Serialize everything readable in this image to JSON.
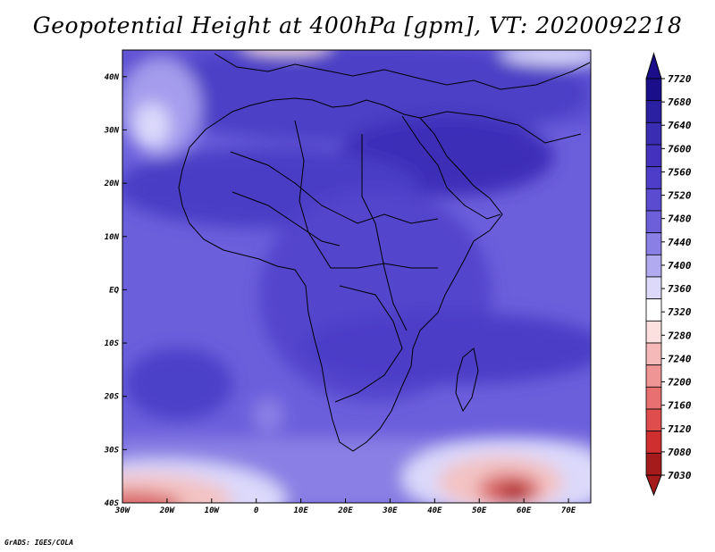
{
  "title": "Geopotential Height at 400hPa [gpm], VT: 2020092218",
  "credit": "GrADS: IGES/COLA",
  "map": {
    "lat_labels": [
      "40N",
      "30N",
      "20N",
      "10N",
      "EQ",
      "10S",
      "20S",
      "30S",
      "40S"
    ],
    "lon_labels": [
      "30W",
      "20W",
      "10W",
      "0",
      "10E",
      "20E",
      "30E",
      "40E",
      "50E",
      "60E",
      "70E"
    ],
    "lat_values": [
      40,
      30,
      20,
      10,
      0,
      -10,
      -20,
      -30,
      -40
    ],
    "lon_values": [
      -30,
      -20,
      -10,
      0,
      10,
      20,
      30,
      40,
      50,
      60,
      70
    ],
    "lat_range": [
      -40,
      45
    ],
    "lon_range": [
      -30,
      75
    ]
  },
  "colorbar": {
    "labels": [
      "7720",
      "7680",
      "7640",
      "7600",
      "7560",
      "7520",
      "7480",
      "7440",
      "7400",
      "7360",
      "7320",
      "7280",
      "7240",
      "7200",
      "7160",
      "7120",
      "7080",
      "7030"
    ],
    "colors": [
      "#1a0e8a",
      "#2b1fa2",
      "#3a2db3",
      "#4432bf",
      "#4d3dc8",
      "#5a4bd1",
      "#6d5fd9",
      "#8a7fe4",
      "#b1aaf0",
      "#dcd9fb",
      "#ffffff",
      "#fce0e0",
      "#f6b9b9",
      "#ef9595",
      "#e87070",
      "#df4d4d",
      "#cf2f2f",
      "#a51a1a"
    ]
  }
}
